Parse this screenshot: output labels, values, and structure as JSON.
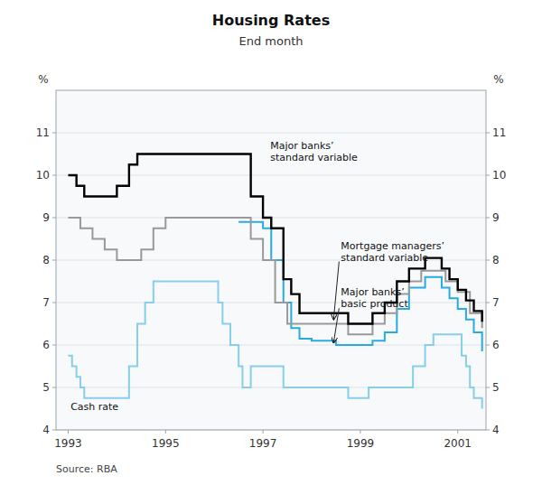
{
  "chart_data": {
    "type": "step",
    "title": "Housing Rates",
    "subtitle": "End month",
    "source": "Source: RBA",
    "ylabel": "%",
    "y2label": "%",
    "xlim": [
      1992.75,
      2001.58
    ],
    "xticks": [
      1993,
      1995,
      1997,
      1999,
      2001
    ],
    "ylim": [
      4,
      12
    ],
    "yticks": [
      4,
      5,
      6,
      7,
      8,
      9,
      10,
      11
    ],
    "y2lim": [
      4,
      12
    ],
    "y2ticks": [
      4,
      5,
      6,
      7,
      8,
      9,
      10,
      11
    ],
    "grid": "y",
    "series": [
      {
        "color": "#000000",
        "x": [
          1993.0,
          1993.17,
          1993.33,
          1993.5,
          1993.67,
          1993.83,
          1994.0,
          1994.25,
          1994.42,
          1994.58,
          1994.75,
          1995.0,
          1995.25,
          1995.5,
          1995.75,
          1996.0,
          1996.25,
          1996.5,
          1996.58,
          1996.75,
          1997.0,
          1997.17,
          1997.42,
          1997.58,
          1997.75,
          1998.0,
          1998.25,
          1998.5,
          1998.75,
          1999.0,
          1999.25,
          1999.5,
          1999.75,
          2000.0,
          2000.17,
          2000.33,
          2000.5,
          2000.67,
          2000.83,
          2001.0,
          2001.17,
          2001.33,
          2001.5
        ],
        "values": [
          10.0,
          9.75,
          9.5,
          9.5,
          9.5,
          9.5,
          9.75,
          10.25,
          10.5,
          10.5,
          10.5,
          10.5,
          10.5,
          10.5,
          10.5,
          10.5,
          10.5,
          10.5,
          10.5,
          9.5,
          9.0,
          8.75,
          7.55,
          7.2,
          6.75,
          6.75,
          6.75,
          6.75,
          6.5,
          6.5,
          6.75,
          7.0,
          7.5,
          7.8,
          7.8,
          8.05,
          8.05,
          7.8,
          7.55,
          7.3,
          7.05,
          6.8,
          6.55
        ]
      },
      {
        "color": "#999999",
        "x": [
          1993.0,
          1993.25,
          1993.5,
          1993.75,
          1994.0,
          1994.25,
          1994.5,
          1994.75,
          1995.0,
          1995.25,
          1995.5,
          1995.75,
          1996.0,
          1996.5,
          1996.75,
          1997.0,
          1997.25,
          1997.5,
          1997.75,
          1998.0,
          1998.25,
          1998.5,
          1998.75,
          1999.0,
          1999.25,
          1999.5,
          1999.75,
          2000.0,
          2000.25,
          2000.5,
          2000.75,
          2001.0,
          2001.25,
          2001.5
        ],
        "values": [
          9.0,
          8.75,
          8.5,
          8.25,
          8.0,
          8.0,
          8.25,
          8.75,
          9.0,
          9.0,
          9.0,
          9.0,
          9.0,
          9.0,
          8.5,
          8.0,
          7.0,
          6.5,
          6.5,
          6.5,
          6.5,
          6.5,
          6.25,
          6.25,
          6.5,
          6.75,
          7.2,
          7.5,
          7.75,
          7.75,
          7.5,
          7.25,
          6.75,
          6.4
        ]
      },
      {
        "color": "#29abe2",
        "x": [
          1996.5,
          1996.75,
          1997.0,
          1997.17,
          1997.42,
          1997.58,
          1997.75,
          1998.0,
          1998.25,
          1998.5,
          1998.75,
          1999.0,
          1999.25,
          1999.5,
          1999.75,
          2000.0,
          2000.17,
          2000.33,
          2000.5,
          2000.67,
          2000.83,
          2001.0,
          2001.17,
          2001.33,
          2001.5
        ],
        "values": [
          8.9,
          8.9,
          8.75,
          8.0,
          7.0,
          6.4,
          6.15,
          6.1,
          6.1,
          6.0,
          6.0,
          6.0,
          6.1,
          6.3,
          6.85,
          7.35,
          7.35,
          7.6,
          7.6,
          7.35,
          7.1,
          6.85,
          6.6,
          6.3,
          5.85
        ]
      },
      {
        "color": "#87ceeb",
        "x": [
          1993.0,
          1993.08,
          1993.17,
          1993.25,
          1993.33,
          1993.5,
          1993.67,
          1993.83,
          1994.0,
          1994.25,
          1994.42,
          1994.58,
          1994.75,
          1995.0,
          1995.25,
          1995.5,
          1995.75,
          1996.0,
          1996.08,
          1996.17,
          1996.33,
          1996.5,
          1996.58,
          1996.75,
          1997.0,
          1997.25,
          1997.42,
          1997.5,
          1997.67,
          1997.75,
          1998.0,
          1998.25,
          1998.5,
          1998.75,
          1999.0,
          1999.17,
          1999.5,
          1999.75,
          2000.0,
          2000.08,
          2000.25,
          2000.33,
          2000.5,
          2000.58,
          2000.67,
          2000.83,
          2001.0,
          2001.08,
          2001.17,
          2001.25,
          2001.33,
          2001.5
        ],
        "values": [
          5.75,
          5.5,
          5.25,
          5.0,
          4.75,
          4.75,
          4.75,
          4.75,
          4.75,
          5.5,
          6.5,
          7.0,
          7.5,
          7.5,
          7.5,
          7.5,
          7.5,
          7.5,
          7.0,
          6.5,
          6.0,
          5.5,
          5.0,
          5.5,
          5.5,
          5.5,
          5.0,
          5.0,
          5.0,
          5.0,
          5.0,
          5.0,
          5.0,
          4.75,
          4.75,
          5.0,
          5.0,
          5.0,
          5.0,
          5.5,
          5.5,
          6.0,
          6.25,
          6.25,
          6.25,
          6.25,
          6.25,
          5.75,
          5.5,
          5.0,
          4.75,
          4.5
        ]
      }
    ],
    "annotations": [
      {
        "text": "Major banks’\nstandard variable",
        "x": 1997.15,
        "y": 10.55
      },
      {
        "text": "Mortgage managers’\nstandard variable",
        "x": 1998.6,
        "y": 8.2,
        "xy": [
          1998.45,
          6.6
        ]
      },
      {
        "text": "Major banks’\nbasic product",
        "x": 1998.6,
        "y": 7.1,
        "xy": [
          1998.45,
          6.05
        ]
      },
      {
        "text": "Cash rate",
        "x": 1993.05,
        "y": 4.55
      }
    ]
  }
}
